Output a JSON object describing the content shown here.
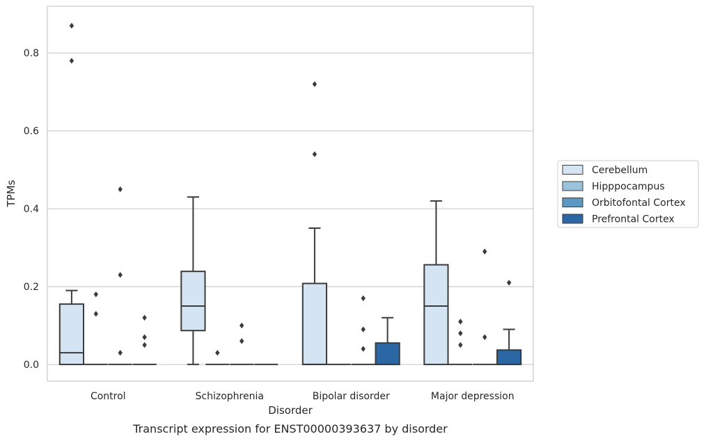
{
  "chart_data": {
    "type": "box",
    "title": "",
    "caption": "Transcript expression for ENST00000393637 by disorder",
    "xlabel": "Disorder",
    "ylabel": "TPMs",
    "ylim": [
      -0.043,
      0.92
    ],
    "yticks": [
      {
        "value": 0.0,
        "label": "0.0"
      },
      {
        "value": 0.2,
        "label": "0.2"
      },
      {
        "value": 0.4,
        "label": "0.4"
      },
      {
        "value": 0.6,
        "label": "0.6"
      },
      {
        "value": 0.8,
        "label": "0.8"
      }
    ],
    "grid": "horizontal",
    "legend_position": "right",
    "categories": [
      "Control",
      "Schizophrenia",
      "Bipolar disorder",
      "Major depression"
    ],
    "series": [
      {
        "name": "Cerebellum",
        "color": "#d4e4f2",
        "boxes": [
          {
            "q1": 0.0,
            "median": 0.03,
            "q3": 0.155,
            "whislo": 0.0,
            "whishi": 0.19,
            "fliers": [
              0.78,
              0.87
            ]
          },
          {
            "q1": 0.087,
            "median": 0.15,
            "q3": 0.239,
            "whislo": 0.0,
            "whishi": 0.43,
            "fliers": []
          },
          {
            "q1": 0.0,
            "median": 0.0,
            "q3": 0.208,
            "whislo": 0.0,
            "whishi": 0.35,
            "fliers": [
              0.54,
              0.72
            ]
          },
          {
            "q1": 0.0,
            "median": 0.15,
            "q3": 0.256,
            "whislo": 0.0,
            "whishi": 0.42,
            "fliers": []
          }
        ]
      },
      {
        "name": "Hipppocampus",
        "color": "#9cc3dc",
        "boxes": [
          {
            "q1": 0.0,
            "median": 0.0,
            "q3": 0.0,
            "whislo": 0.0,
            "whishi": 0.0,
            "fliers": [
              0.13,
              0.18
            ]
          },
          {
            "q1": 0.0,
            "median": 0.0,
            "q3": 0.0,
            "whislo": 0.0,
            "whishi": 0.0,
            "fliers": [
              0.03
            ]
          },
          {
            "q1": 0.0,
            "median": 0.0,
            "q3": 0.0,
            "whislo": 0.0,
            "whishi": 0.0,
            "fliers": []
          },
          {
            "q1": 0.0,
            "median": 0.0,
            "q3": 0.0,
            "whislo": 0.0,
            "whishi": 0.0,
            "fliers": [
              0.05,
              0.08,
              0.11
            ]
          }
        ]
      },
      {
        "name": "Orbitofontal Cortex",
        "color": "#5b98c2",
        "boxes": [
          {
            "q1": 0.0,
            "median": 0.0,
            "q3": 0.0,
            "whislo": 0.0,
            "whishi": 0.0,
            "fliers": [
              0.03,
              0.23,
              0.45
            ]
          },
          {
            "q1": 0.0,
            "median": 0.0,
            "q3": 0.0,
            "whislo": 0.0,
            "whishi": 0.0,
            "fliers": [
              0.06,
              0.1
            ]
          },
          {
            "q1": 0.0,
            "median": 0.0,
            "q3": 0.0,
            "whislo": 0.0,
            "whishi": 0.0,
            "fliers": [
              0.04,
              0.09,
              0.17
            ]
          },
          {
            "q1": 0.0,
            "median": 0.0,
            "q3": 0.0,
            "whislo": 0.0,
            "whishi": 0.0,
            "fliers": [
              0.07,
              0.29
            ]
          }
        ]
      },
      {
        "name": "Prefrontal Cortex",
        "color": "#2a67a4",
        "boxes": [
          {
            "q1": 0.0,
            "median": 0.0,
            "q3": 0.0,
            "whislo": 0.0,
            "whishi": 0.0,
            "fliers": [
              0.05,
              0.07,
              0.12
            ]
          },
          {
            "q1": 0.0,
            "median": 0.0,
            "q3": 0.0,
            "whislo": 0.0,
            "whishi": 0.0,
            "fliers": []
          },
          {
            "q1": 0.0,
            "median": 0.0,
            "q3": 0.055,
            "whislo": 0.0,
            "whishi": 0.12,
            "fliers": []
          },
          {
            "q1": 0.0,
            "median": 0.0,
            "q3": 0.037,
            "whislo": 0.0,
            "whishi": 0.09,
            "fliers": [
              0.21
            ]
          }
        ]
      }
    ]
  }
}
